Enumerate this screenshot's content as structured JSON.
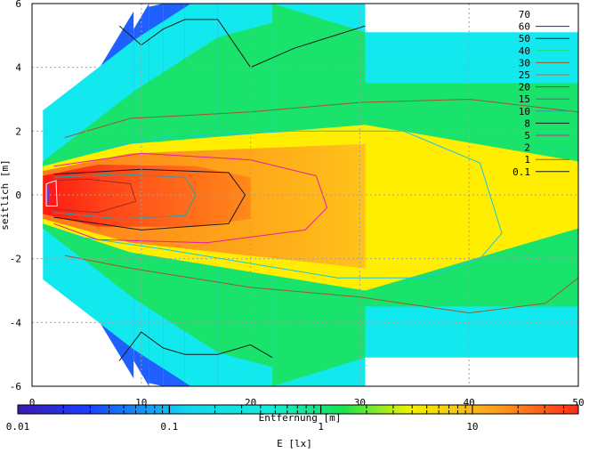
{
  "chart_data": {
    "type": "heatmap",
    "title": "",
    "xlabel": "Entfernung [m]",
    "ylabel": "seitlich [m]",
    "xlim": [
      0,
      50
    ],
    "ylim": [
      -6,
      6
    ],
    "x_ticks": [
      0,
      10,
      20,
      30,
      40,
      50
    ],
    "y_ticks": [
      -6,
      -4,
      -2,
      0,
      2,
      4,
      6
    ],
    "colorbar": {
      "label": "E [lx]",
      "scale": "log",
      "range": [
        0.01,
        50
      ],
      "ticks": [
        0.01,
        0.1,
        1,
        10
      ]
    },
    "legend": {
      "title": "",
      "placement": "top-right",
      "contour_levels": [
        "70",
        "60",
        "50",
        "40",
        "30",
        "25",
        "20",
        "15",
        "10",
        "8",
        "5",
        "2",
        "1",
        "0.1"
      ]
    },
    "fan_segments_x_end_m": [
      9.3,
      10.7,
      12,
      14,
      17,
      22,
      30.5,
      50
    ],
    "colors": {
      "red": "#ff3a1a",
      "orange": "#ff9a1a",
      "yellow": "#ffee00",
      "green": "#19e36b",
      "cyan": "#12e9ef",
      "blue": "#1f60ff"
    }
  }
}
